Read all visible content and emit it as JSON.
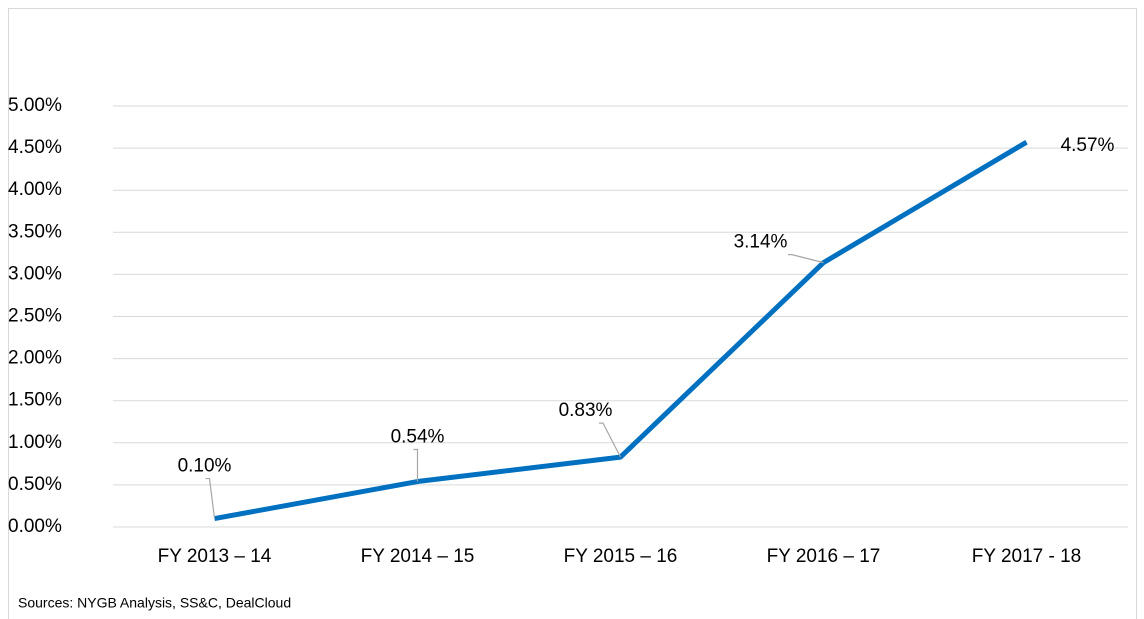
{
  "chart_data": {
    "type": "line",
    "categories": [
      "FY 2013 – 14",
      "FY 2014 – 15",
      "FY 2015 – 16",
      "FY 2016 – 17",
      "FY 2017 - 18"
    ],
    "series": [
      {
        "color": "#0070c0",
        "values": [
          0.1,
          0.54,
          0.83,
          3.14,
          4.57
        ],
        "value_labels": [
          "0.10%",
          "0.54%",
          "0.83%",
          "3.14%",
          "4.57%"
        ]
      }
    ],
    "ylim": [
      0,
      5
    ],
    "yticks": [
      {
        "value": 0,
        "label": "0.00%"
      },
      {
        "value": 0.5,
        "label": "0.50%"
      },
      {
        "value": 1,
        "label": "1.00%"
      },
      {
        "value": 1.5,
        "label": "1.50%"
      },
      {
        "value": 2,
        "label": "2.00%"
      },
      {
        "value": 2.5,
        "label": "2.50%"
      },
      {
        "value": 3,
        "label": "3.00%"
      },
      {
        "value": 3.5,
        "label": "3.50%"
      },
      {
        "value": 4,
        "label": "4.00%"
      },
      {
        "value": 4.5,
        "label": "4.50%"
      },
      {
        "value": 5,
        "label": "5.00%"
      }
    ],
    "grid": true,
    "source": "Sources: NYGB Analysis, SS&C, DealCloud"
  }
}
